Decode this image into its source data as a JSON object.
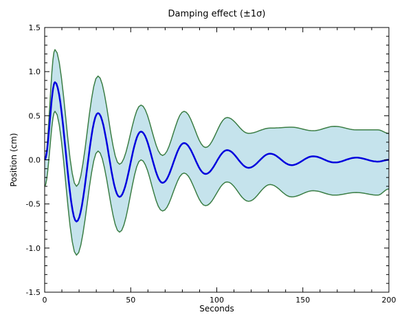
{
  "chart_data": {
    "type": "line",
    "title": "Damping effect (±1σ)",
    "xlabel": "Seconds",
    "ylabel": "Position (cm)",
    "xlim": [
      0,
      200
    ],
    "ylim": [
      -1.5,
      1.5
    ],
    "x_ticks": [
      0,
      50,
      100,
      150,
      200
    ],
    "x_tick_labels": [
      "0",
      "50",
      "100",
      "150",
      "200"
    ],
    "y_ticks": [
      1.5,
      1.0,
      0.5,
      0.0,
      -0.5,
      -1.0,
      -1.5
    ],
    "y_tick_labels": [
      "1.5",
      "1.0",
      "0.5",
      "0.0",
      "-0.5",
      "-1.0",
      "-1.5"
    ],
    "grid": false,
    "series": [
      {
        "role": "mean",
        "color": "#0000dd",
        "x": [
          0,
          6,
          18.5,
          31,
          43.5,
          56,
          68.5,
          81,
          93.5,
          106,
          118.5,
          131,
          143.5,
          156,
          168.5,
          181,
          193.5,
          200
        ],
        "y": [
          0.0,
          0.88,
          -0.7,
          0.53,
          -0.42,
          0.32,
          -0.26,
          0.19,
          -0.16,
          0.11,
          -0.09,
          0.07,
          -0.06,
          0.04,
          -0.03,
          0.025,
          -0.02,
          0.0
        ]
      },
      {
        "role": "upper_band",
        "color": "#3a7d44",
        "x": [
          0,
          6,
          18.5,
          31,
          43.5,
          56,
          68.5,
          81,
          93.5,
          106,
          118.5,
          131,
          143.5,
          156,
          168.5,
          181,
          193.5,
          200
        ],
        "y": [
          0.0,
          1.25,
          -0.3,
          0.95,
          -0.05,
          0.62,
          0.05,
          0.55,
          0.14,
          0.48,
          0.3,
          0.36,
          0.37,
          0.33,
          0.38,
          0.34,
          0.34,
          0.3
        ]
      },
      {
        "role": "lower_band",
        "color": "#3a7d44",
        "x": [
          0,
          6,
          18.5,
          31,
          43.5,
          56,
          68.5,
          81,
          93.5,
          106,
          118.5,
          131,
          143.5,
          156,
          168.5,
          181,
          193.5,
          200
        ],
        "y": [
          -0.3,
          0.55,
          -1.08,
          0.1,
          -0.82,
          0.0,
          -0.58,
          -0.15,
          -0.52,
          -0.25,
          -0.47,
          -0.28,
          -0.42,
          -0.35,
          -0.4,
          -0.37,
          -0.4,
          -0.33
        ]
      }
    ],
    "fill_color": "#c5e3ec"
  }
}
